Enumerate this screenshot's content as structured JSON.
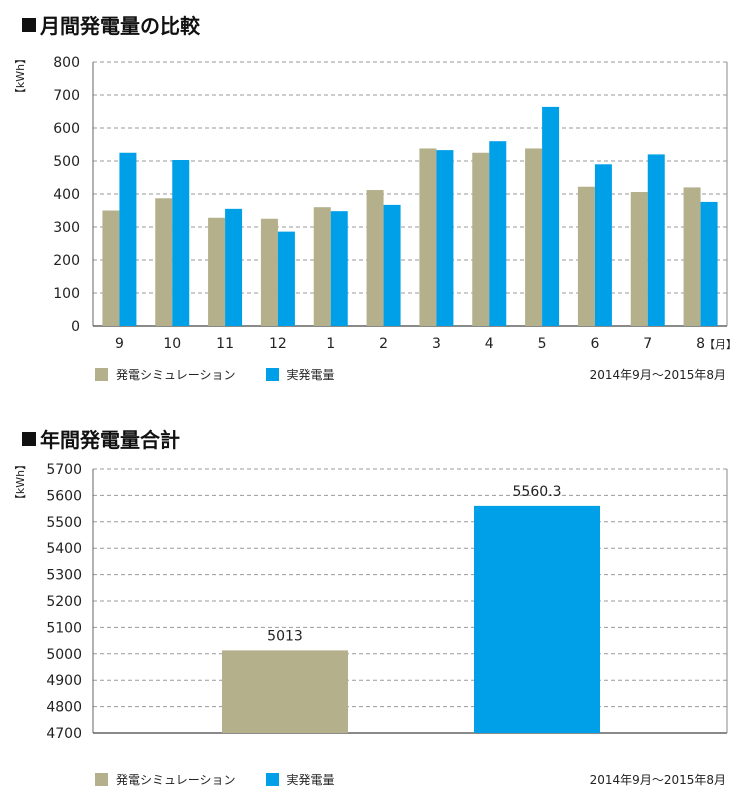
{
  "charts": {
    "monthly": {
      "title": "月間発電量の比較",
      "date_range": "2014年9月～2015年8月"
    },
    "annual": {
      "title": "年間発電量合計",
      "date_range": "2014年9月～2015年8月"
    }
  },
  "legend": {
    "simulation": "発電シミュレーション",
    "actual": "実発電量"
  },
  "colors": {
    "simulation": "#b3b08b",
    "actual": "#00a0e9",
    "grid": "#9a9a9a"
  },
  "chart_data": [
    {
      "type": "bar",
      "title": "月間発電量の比較",
      "ylabel": "【kWh】",
      "xlabel": "【月】",
      "categories": [
        "9",
        "10",
        "11",
        "12",
        "1",
        "2",
        "3",
        "4",
        "5",
        "6",
        "7",
        "8"
      ],
      "series": [
        {
          "name": "発電シミュレーション",
          "values": [
            350,
            387,
            328,
            325,
            360,
            412,
            538,
            525,
            538,
            422,
            406,
            420
          ]
        },
        {
          "name": "実発電量",
          "values": [
            525,
            503,
            355,
            286,
            348,
            367,
            533,
            560,
            664,
            490,
            520,
            376
          ]
        }
      ],
      "ylim": [
        0,
        800
      ],
      "yticks": [
        0,
        100,
        200,
        300,
        400,
        500,
        600,
        700,
        800
      ],
      "grid": true,
      "legend_position": "bottom-left"
    },
    {
      "type": "bar",
      "title": "年間発電量合計",
      "ylabel": "【kWh】",
      "categories": [
        "発電シミュレーション",
        "実発電量"
      ],
      "series": [
        {
          "name": "発電シミュレーション",
          "values": [
            5013,
            null
          ]
        },
        {
          "name": "実発電量",
          "values": [
            null,
            5560.3
          ]
        }
      ],
      "value_labels": [
        "5013",
        "5560.3"
      ],
      "ylim": [
        4700,
        5700
      ],
      "yticks": [
        4700,
        4800,
        4900,
        5000,
        5100,
        5200,
        5300,
        5400,
        5500,
        5600,
        5700
      ],
      "grid": true,
      "legend_position": "bottom-left"
    }
  ]
}
